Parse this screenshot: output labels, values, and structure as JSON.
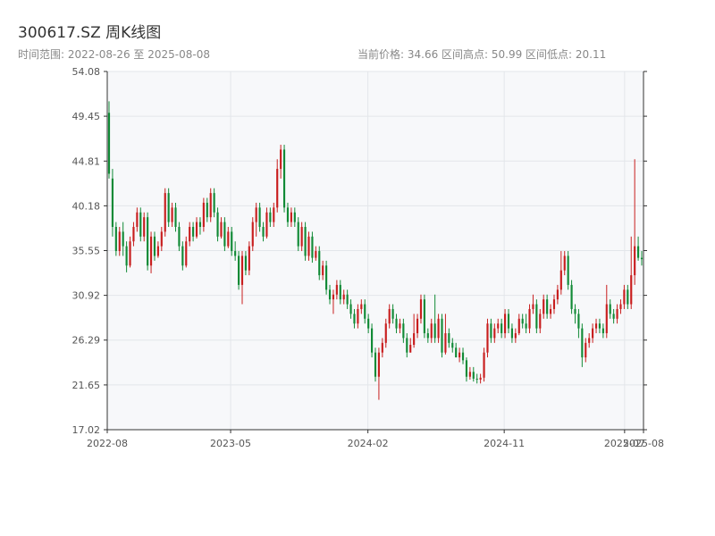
{
  "header": {
    "title": "300617.SZ 周K线图",
    "range_text": "时间范围: 2022-08-26 至 2025-08-08",
    "stats_text": "当前价格: 34.66   区间高点: 50.99   区间低点: 20.11"
  },
  "colors": {
    "up": "#c81e1e",
    "down": "#118a36",
    "plot_bg": "#f7f8fa",
    "grid": "#e3e6ea",
    "axis": "#333333"
  },
  "chart_data": {
    "type": "candlestick",
    "title": "300617.SZ 周K线图",
    "ylim": [
      17.02,
      54.08
    ],
    "yticks": [
      17.02,
      21.65,
      26.29,
      30.92,
      35.55,
      40.18,
      44.81,
      49.45,
      54.08
    ],
    "xlim": [
      "2022-08-26",
      "2025-08-08"
    ],
    "xticks": [
      {
        "date": "2022-08-26",
        "label": "2022-08"
      },
      {
        "date": "2023-05-01",
        "label": "2023-05"
      },
      {
        "date": "2024-02-01",
        "label": "2024-02"
      },
      {
        "date": "2024-11-01",
        "label": "2024-11"
      },
      {
        "date": "2025-07-01",
        "label": "2025-07"
      },
      {
        "date": "2025-08-08",
        "label": "2025-08"
      }
    ],
    "grid": true,
    "current_price": 34.66,
    "period_high": 50.99,
    "period_low": 20.11,
    "candles": [
      [
        49.8,
        43.5,
        50.99,
        43
      ],
      [
        43,
        38,
        44,
        37
      ],
      [
        38,
        35.5,
        38.5,
        35
      ],
      [
        35.5,
        37.5,
        38,
        35
      ],
      [
        37.5,
        36,
        38.5,
        35
      ],
      [
        36,
        34,
        36.5,
        33.3
      ],
      [
        34,
        36.5,
        37,
        33.8
      ],
      [
        36.5,
        38,
        38.5,
        36
      ],
      [
        38,
        39.5,
        40,
        37.5
      ],
      [
        39.5,
        37,
        40,
        36.5
      ],
      [
        37,
        39,
        39.5,
        36.5
      ],
      [
        39,
        34,
        39.5,
        33.5
      ],
      [
        34,
        37,
        37.5,
        33.2
      ],
      [
        37,
        35,
        37.5,
        34.5
      ],
      [
        35,
        36,
        36.5,
        34.8
      ],
      [
        36,
        37.5,
        38,
        35.5
      ],
      [
        37.5,
        41.5,
        42,
        37
      ],
      [
        41.5,
        38.5,
        42,
        38
      ],
      [
        38.5,
        40,
        40.5,
        38
      ],
      [
        40,
        38,
        40.5,
        37.5
      ],
      [
        38,
        36,
        38.5,
        35.5
      ],
      [
        36,
        34,
        36.5,
        33.5
      ],
      [
        34,
        36.5,
        37,
        33.8
      ],
      [
        36.5,
        38,
        38.5,
        36
      ],
      [
        38,
        37,
        38.5,
        36.5
      ],
      [
        37,
        38.5,
        39,
        36.8
      ],
      [
        38.5,
        38,
        39,
        37.2
      ],
      [
        38,
        40.5,
        41,
        37.5
      ],
      [
        40.5,
        39,
        41,
        38.5
      ],
      [
        39,
        41.5,
        42,
        38.5
      ],
      [
        41.5,
        39.5,
        42,
        39
      ],
      [
        39.5,
        37,
        40,
        36.5
      ],
      [
        37,
        38.5,
        39,
        36.8
      ],
      [
        38.5,
        36,
        39,
        35.5
      ],
      [
        36,
        37.5,
        38,
        35.8
      ],
      [
        37.5,
        35.5,
        38,
        35
      ],
      [
        35.5,
        35,
        36.5,
        34.5
      ],
      [
        35,
        32,
        35.5,
        31.5
      ],
      [
        32,
        35,
        35.5,
        30
      ],
      [
        35,
        33.5,
        35.5,
        33
      ],
      [
        33.5,
        36,
        36.5,
        33
      ],
      [
        36,
        38.5,
        39,
        35.5
      ],
      [
        38.5,
        40,
        40.5,
        37
      ],
      [
        40,
        38,
        40.5,
        37.5
      ],
      [
        38,
        37,
        38.5,
        36.5
      ],
      [
        37,
        39.5,
        40,
        36.8
      ],
      [
        39.5,
        38.5,
        40,
        38
      ],
      [
        38.5,
        40,
        40.5,
        38
      ],
      [
        40,
        44,
        45,
        39.5
      ],
      [
        44,
        46,
        46.5,
        43
      ],
      [
        46,
        40,
        46.5,
        39.5
      ],
      [
        40,
        38.5,
        40.5,
        38
      ],
      [
        38.5,
        39.5,
        40,
        38
      ],
      [
        39.5,
        38.5,
        40,
        38
      ],
      [
        38.5,
        36,
        39,
        35.5
      ],
      [
        36,
        38,
        38.5,
        35.5
      ],
      [
        38,
        35,
        38.5,
        34.5
      ],
      [
        35,
        37,
        37.5,
        34.5
      ],
      [
        37,
        34.8,
        37.5,
        34.3
      ],
      [
        34.8,
        35.5,
        36,
        34.5
      ],
      [
        35.5,
        33,
        36,
        32.5
      ],
      [
        33,
        34,
        34.5,
        32.5
      ],
      [
        34,
        31.5,
        34.5,
        31
      ],
      [
        31.5,
        30.5,
        32,
        30
      ],
      [
        30.5,
        31,
        31.5,
        29
      ],
      [
        31,
        32,
        32.5,
        30.5
      ],
      [
        32,
        30.5,
        32.5,
        30
      ],
      [
        30.5,
        31,
        31.5,
        30
      ],
      [
        31,
        30,
        31.5,
        29.5
      ],
      [
        30,
        29,
        30.5,
        28.5
      ],
      [
        29,
        28,
        29.5,
        27.5
      ],
      [
        28,
        29.5,
        30,
        27.5
      ],
      [
        29.5,
        30,
        30.5,
        29
      ],
      [
        30,
        28.5,
        30.5,
        28
      ],
      [
        28.5,
        27.5,
        29,
        27
      ],
      [
        27.5,
        25,
        28,
        24.5
      ],
      [
        25,
        22.5,
        25.5,
        22
      ],
      [
        22.5,
        25,
        25.5,
        20.11
      ],
      [
        25,
        26,
        26.5,
        24.5
      ],
      [
        26,
        28,
        28.5,
        25.5
      ],
      [
        28,
        29.5,
        30,
        27.5
      ],
      [
        29.5,
        28.5,
        30,
        28
      ],
      [
        28.5,
        27.5,
        29,
        27
      ],
      [
        27.5,
        28,
        28.5,
        27
      ],
      [
        28,
        26.5,
        28.5,
        26
      ],
      [
        26.5,
        25,
        27,
        24.5
      ],
      [
        25,
        25.8,
        26.5,
        25
      ],
      [
        25.8,
        27,
        29,
        25.5
      ],
      [
        27,
        28.5,
        29,
        26.5
      ],
      [
        28.5,
        30.5,
        31,
        28
      ],
      [
        30.5,
        27,
        31,
        26.5
      ],
      [
        27,
        26.5,
        27.5,
        26
      ],
      [
        26.5,
        28,
        28.5,
        26
      ],
      [
        28,
        26.5,
        31,
        26
      ],
      [
        26.5,
        28.5,
        29,
        26
      ],
      [
        28.5,
        25,
        29,
        24.5
      ],
      [
        25,
        27,
        29,
        24.8
      ],
      [
        27,
        26,
        27.5,
        25.5
      ],
      [
        26,
        25.5,
        26.5,
        25
      ],
      [
        25.5,
        24.5,
        26,
        24.5
      ],
      [
        24.5,
        25,
        25.5,
        24
      ],
      [
        25,
        24.2,
        25.5,
        23.8
      ],
      [
        24.2,
        22.5,
        24.5,
        22
      ],
      [
        22.5,
        23,
        23.5,
        22.2
      ],
      [
        23,
        22.3,
        23.5,
        22
      ],
      [
        22.3,
        22.2,
        22.8,
        21.8
      ],
      [
        22.2,
        22.4,
        22.8,
        21.8
      ],
      [
        22.4,
        25,
        25.5,
        22
      ],
      [
        25,
        28,
        28.5,
        24.5
      ],
      [
        28,
        26.5,
        28.5,
        26
      ],
      [
        26.5,
        27.5,
        28,
        26
      ],
      [
        27.5,
        28,
        28.5,
        27
      ],
      [
        28,
        27,
        28.5,
        26.5
      ],
      [
        27,
        29,
        29.5,
        26.5
      ],
      [
        29,
        27.5,
        29.5,
        27
      ],
      [
        27.5,
        26.5,
        28,
        26
      ],
      [
        26.5,
        27,
        27.5,
        26
      ],
      [
        27,
        28.5,
        29,
        26.8
      ],
      [
        28.5,
        28,
        29,
        27.5
      ],
      [
        28,
        27.5,
        29,
        27
      ],
      [
        27.5,
        29.5,
        30,
        27
      ],
      [
        29.5,
        30,
        31,
        29
      ],
      [
        30,
        27.5,
        30.5,
        27
      ],
      [
        27.5,
        29,
        29.5,
        27
      ],
      [
        29,
        30.5,
        31,
        28.5
      ],
      [
        30.5,
        29,
        31,
        28.5
      ],
      [
        29,
        29.5,
        30,
        28.5
      ],
      [
        29.5,
        30.5,
        31,
        29
      ],
      [
        30.5,
        31.5,
        32,
        30
      ],
      [
        31.5,
        33.5,
        35.5,
        31
      ],
      [
        33.5,
        35,
        35.5,
        33
      ],
      [
        35,
        32,
        35.5,
        31.5
      ],
      [
        32,
        29.5,
        32.5,
        29
      ],
      [
        29.5,
        29,
        30,
        28
      ],
      [
        29,
        27.5,
        29.5,
        26.5
      ],
      [
        27.5,
        24.5,
        28,
        23.5
      ],
      [
        24.5,
        26,
        26.5,
        24
      ],
      [
        26,
        26.5,
        27,
        25.5
      ],
      [
        26.5,
        27.5,
        28,
        26
      ],
      [
        27.5,
        28,
        28.5,
        27
      ],
      [
        28,
        27.5,
        28.5,
        27
      ],
      [
        27.5,
        27,
        28,
        26.5
      ],
      [
        27,
        30,
        32,
        26.5
      ],
      [
        30,
        29,
        30.5,
        28.5
      ],
      [
        29,
        28.5,
        29.5,
        28
      ],
      [
        28.5,
        29.5,
        30,
        28
      ],
      [
        29.5,
        30,
        30.5,
        29
      ],
      [
        30,
        31.5,
        32,
        29.5
      ],
      [
        31.5,
        30,
        32,
        29.5
      ],
      [
        30,
        33,
        37,
        29.5
      ],
      [
        33,
        36,
        45,
        32
      ],
      [
        36,
        34.8,
        37,
        34.5
      ],
      [
        34.8,
        34.66,
        35.5,
        34
      ]
    ]
  }
}
